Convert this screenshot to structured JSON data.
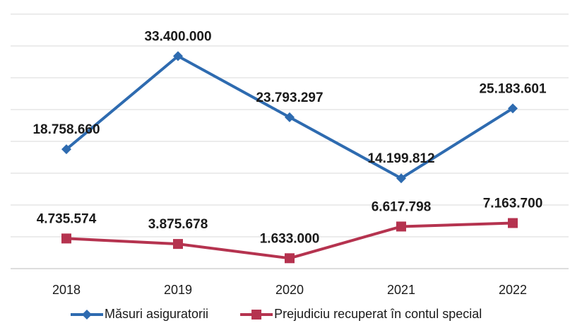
{
  "chart_data": {
    "type": "line",
    "categories": [
      "2018",
      "2019",
      "2020",
      "2021",
      "2022"
    ],
    "series": [
      {
        "name": "Măsuri asiguratorii",
        "color": "#2e6bb0",
        "marker": "diamond",
        "values": [
          18758660,
          33400000,
          23793297,
          14199812,
          25183601
        ],
        "value_labels": [
          "18.758.660",
          "33.400.000",
          "23.793.297",
          "14.199.812",
          "25.183.601"
        ]
      },
      {
        "name": "Prejudiciu recuperat în contul special",
        "color": "#b5334f",
        "marker": "square",
        "values": [
          4735574,
          3875678,
          1633000,
          6617798,
          7163700
        ],
        "value_labels": [
          "4.735.574",
          "3.875.678",
          "1.633.000",
          "6.617.798",
          "7.163.700"
        ]
      }
    ],
    "ylim": [
      0,
      40000000
    ],
    "yticks": [
      0,
      5000000,
      10000000,
      15000000,
      20000000,
      25000000,
      30000000,
      35000000,
      40000000
    ],
    "grid": true,
    "legend": "bottom"
  }
}
